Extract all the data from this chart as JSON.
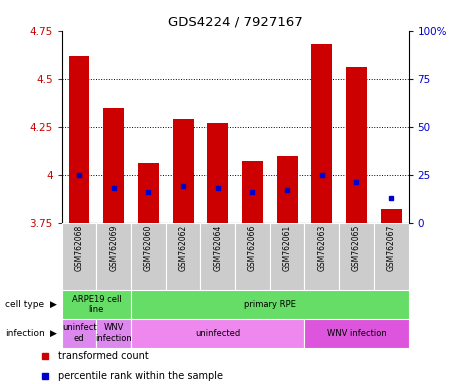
{
  "title": "GDS4224 / 7927167",
  "samples": [
    "GSM762068",
    "GSM762069",
    "GSM762060",
    "GSM762062",
    "GSM762064",
    "GSM762066",
    "GSM762061",
    "GSM762063",
    "GSM762065",
    "GSM762067"
  ],
  "bar_heights": [
    4.62,
    4.35,
    4.06,
    4.29,
    4.27,
    4.07,
    4.1,
    4.68,
    4.56,
    3.82
  ],
  "percentile_values": [
    4.0,
    3.93,
    3.91,
    3.94,
    3.93,
    3.91,
    3.92,
    4.0,
    3.96,
    3.88
  ],
  "ylim": [
    3.75,
    4.75
  ],
  "yticks": [
    3.75,
    4.0,
    4.25,
    4.5,
    4.75
  ],
  "ytick_labels": [
    "3.75",
    "4",
    "4.25",
    "4.5",
    "4.75"
  ],
  "right_yticks": [
    0,
    25,
    50,
    75,
    100
  ],
  "right_ytick_labels": [
    "0",
    "25",
    "50",
    "75",
    "100%"
  ],
  "bar_color": "#cc0000",
  "percentile_color": "#0000cc",
  "cell_type_groups": [
    {
      "text": "ARPE19 cell\nline",
      "start": 0,
      "end": 2,
      "color": "#66dd66"
    },
    {
      "text": "primary RPE",
      "start": 2,
      "end": 10,
      "color": "#66dd66"
    }
  ],
  "infection_groups": [
    {
      "text": "uninfect\ned",
      "start": 0,
      "end": 1,
      "color": "#dd88ee"
    },
    {
      "text": "WNV\ninfection",
      "start": 1,
      "end": 2,
      "color": "#dd88ee"
    },
    {
      "text": "uninfected",
      "start": 2,
      "end": 7,
      "color": "#ee88ee"
    },
    {
      "text": "WNV infection",
      "start": 7,
      "end": 10,
      "color": "#dd55dd"
    }
  ],
  "grid_yticks": [
    4.0,
    4.25,
    4.5
  ],
  "legend_items": [
    {
      "label": "transformed count",
      "color": "#cc0000"
    },
    {
      "label": "percentile rank within the sample",
      "color": "#0000cc"
    }
  ]
}
